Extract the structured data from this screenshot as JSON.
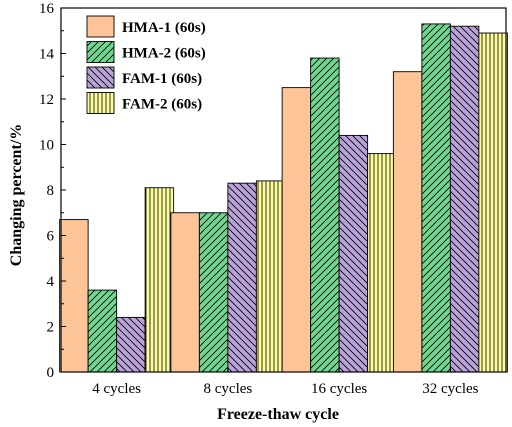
{
  "chart_data": {
    "type": "bar",
    "categories": [
      "4 cycles",
      "8 cycles",
      "16 cycles",
      "32 cycles"
    ],
    "series": [
      {
        "name": "HMA-1 (60s)",
        "values": [
          6.7,
          7.0,
          12.5,
          13.2
        ],
        "color": "#fdc597",
        "pattern": "none"
      },
      {
        "name": "HMA-2 (60s)",
        "values": [
          3.6,
          7.0,
          13.8,
          15.3
        ],
        "color": "#6fd78f",
        "pattern": "hatch-up"
      },
      {
        "name": "FAM-1 (60s)",
        "values": [
          2.4,
          8.3,
          10.4,
          15.2
        ],
        "color": "#b8a2d8",
        "pattern": "hatch-down"
      },
      {
        "name": "FAM-2 (60s)",
        "values": [
          8.1,
          8.4,
          9.6,
          14.9
        ],
        "color": "#fdfd9c",
        "pattern": "vertical"
      }
    ],
    "xlabel": "Freeze-thaw cycle",
    "ylabel": "Changing percent/%",
    "ylim": [
      0,
      16
    ],
    "yticks": [
      "0",
      "2",
      "4",
      "6",
      "8",
      "10",
      "12",
      "14",
      "16"
    ],
    "grid": false,
    "legend_position": "top-left"
  }
}
